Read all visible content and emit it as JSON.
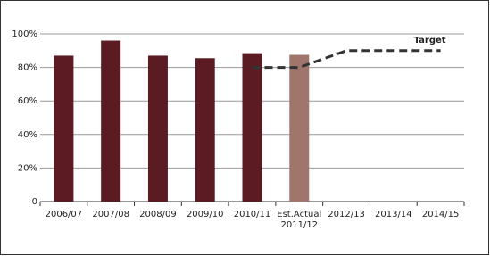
{
  "chart_data": {
    "type": "bar",
    "categories": [
      "2006/07",
      "2007/08",
      "2008/09",
      "2009/10",
      "2010/11",
      "Est.Actual\n2011/12",
      "2012/13",
      "2013/14",
      "2014/15"
    ],
    "series": [
      {
        "type": "bar",
        "colors": [
          "#5b1b22",
          "#5b1b22",
          "#5b1b22",
          "#5b1b22",
          "#5b1b22",
          "#a0756b",
          null,
          null,
          null
        ],
        "values": [
          87,
          96,
          87,
          85.5,
          88.5,
          87.5,
          null,
          null,
          null
        ]
      },
      {
        "type": "line",
        "name": "Target",
        "color": "#333333",
        "dashed": true,
        "values": [
          null,
          null,
          null,
          null,
          80,
          80,
          90,
          90,
          90
        ]
      }
    ],
    "ylim": [
      0,
      100
    ],
    "yticks": [
      0,
      {
        "value": 20,
        "label": "20%"
      },
      {
        "value": 40,
        "label": "40%"
      },
      {
        "value": 60,
        "label": "60%"
      },
      {
        "value": 80,
        "label": "80%"
      },
      {
        "value": 100,
        "label": "100%"
      }
    ],
    "grid": true
  }
}
